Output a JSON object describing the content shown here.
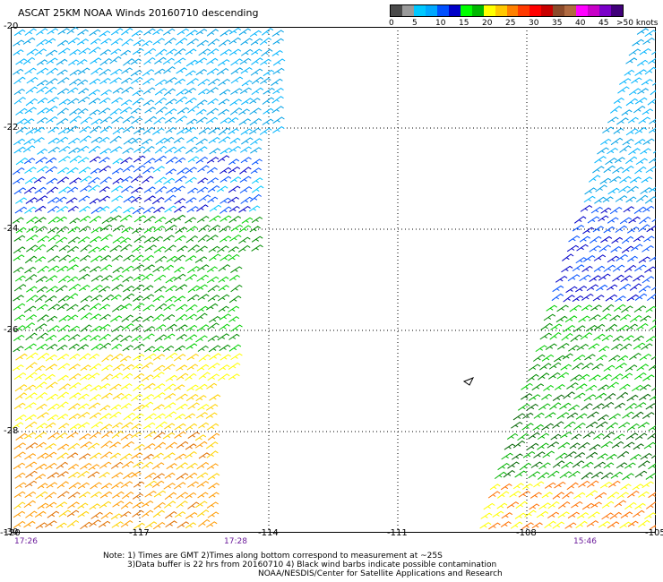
{
  "title": "ASCAT 25KM NOAA Winds 20160710 descending",
  "legend": {
    "unit_label": ">50 knots",
    "colors": [
      "#4b4b4b",
      "#9a9a9a",
      "#00c8ff",
      "#00a8ff",
      "#0050ff",
      "#0000c8",
      "#00ff00",
      "#00b800",
      "#ffff00",
      "#ffc800",
      "#ff8000",
      "#ff3a00",
      "#ff0000",
      "#c80000",
      "#8b4a2a",
      "#b06a40",
      "#ff00ff",
      "#c800c8",
      "#7a00c8",
      "#40007a"
    ],
    "ticks": [
      "0",
      "5",
      "10",
      "15",
      "20",
      "25",
      "30",
      "35",
      "40",
      "45"
    ]
  },
  "map": {
    "lat_labels": [
      "-20",
      "-22",
      "-24",
      "-26",
      "-28",
      "-30"
    ],
    "lon_labels": [
      "-120",
      "-117",
      "-114",
      "-111",
      "-108",
      "-105"
    ],
    "island_marker": "small island outline"
  },
  "swath_times": {
    "left_start": "17:26",
    "left_end": "17:28",
    "right": "15:46"
  },
  "notes": {
    "line1": "Note: 1) Times are GMT 2)Times along bottom correspond to measurement at ~25S",
    "line2": "3)Data buffer is 22 hrs from 20160710 4) Black wind barbs indicate possible contamination",
    "line3": "NOAA/NESDIS/Center for Satellite Applications and Research"
  }
}
